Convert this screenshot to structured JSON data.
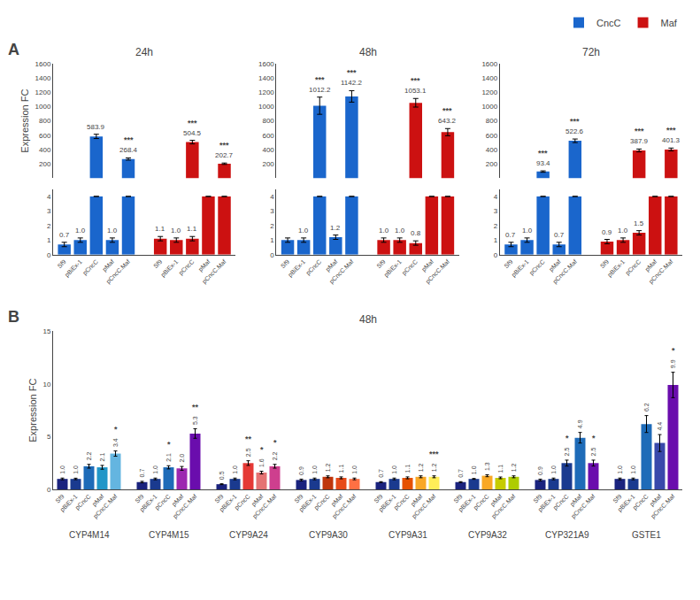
{
  "chart_data": [
    {
      "type": "bar",
      "title": "24h",
      "ylabel": "Expression FC",
      "annotations": [
        {
          "text": "A"
        }
      ],
      "legend": "upper right",
      "grid": false,
      "tick_labels": "y",
      "data_labels": true,
      "categories": [
        "Sf9",
        "pBiEx-1",
        "pCncC",
        "pMaf",
        "pCncC.Maf"
      ],
      "ylim": [
        0,
        1600
      ],
      "yticks": [
        200,
        400,
        600,
        800,
        1000,
        1200,
        1400,
        1600
      ],
      "series": [
        {
          "name": "CncC",
          "color": "#1a66cc",
          "values": [
            null,
            null,
            583.9,
            null,
            268.4
          ],
          "errors": [
            null,
            null,
            30.0,
            null,
            15.0
          ],
          "value_labels": [
            null,
            null,
            "583.9",
            null,
            "268.4"
          ],
          "significance": [
            null,
            null,
            null,
            null,
            "***"
          ]
        },
        {
          "name": "Maf",
          "color": "#cc1111",
          "values": [
            null,
            null,
            504.5,
            null,
            202.7
          ],
          "errors": [
            null,
            null,
            25.0,
            null,
            10.0
          ],
          "value_labels": [
            null,
            null,
            "504.5",
            null,
            "202.7"
          ],
          "significance": [
            null,
            null,
            "***",
            null,
            "***"
          ]
        }
      ]
    },
    {
      "type": "bar",
      "grid": false,
      "data_labels": true,
      "categories": [
        "Sf9",
        "pBiEx-1",
        "pCncC",
        "pMaf",
        "pCncC.Maf"
      ],
      "ylim": [
        0,
        4.5
      ],
      "yticks": [
        0,
        1,
        2,
        3,
        4
      ],
      "series": [
        {
          "name": "CncC",
          "color": "#1a66cc",
          "values": [
            0.7,
            1.0,
            4.0,
            1.0,
            4.0
          ],
          "errors": [
            0.15,
            0.15,
            0,
            0.15,
            0
          ],
          "value_labels": [
            "0.7",
            "1.0",
            null,
            "1.0",
            null
          ]
        },
        {
          "name": "Maf",
          "color": "#cc1111",
          "values": [
            1.1,
            1.0,
            1.1,
            4.0,
            4.0
          ],
          "errors": [
            0.15,
            0.15,
            0.15,
            0,
            0
          ],
          "value_labels": [
            "1.1",
            "1.0",
            "1.1",
            null,
            null
          ]
        }
      ]
    },
    {
      "type": "bar",
      "title": "48h",
      "grid": false,
      "tick_labels": "y",
      "data_labels": true,
      "categories": [
        "Sf9",
        "pBiEx-1",
        "pCncC",
        "pMaf",
        "pCncC.Maf"
      ],
      "ylim": [
        0,
        1600
      ],
      "yticks": [
        200,
        400,
        600,
        800,
        1000,
        1200,
        1400,
        1600
      ],
      "series": [
        {
          "name": "CncC",
          "color": "#1a66cc",
          "values": [
            null,
            null,
            1012.2,
            null,
            1142.2
          ],
          "errors": [
            null,
            null,
            120.0,
            null,
            80.0
          ],
          "value_labels": [
            null,
            null,
            "1012.2",
            null,
            "1142.2"
          ],
          "significance": [
            null,
            null,
            "***",
            null,
            "***"
          ]
        },
        {
          "name": "Maf",
          "color": "#cc1111",
          "values": [
            null,
            null,
            1053.1,
            null,
            643.2
          ],
          "errors": [
            null,
            null,
            60.0,
            null,
            50.0
          ],
          "value_labels": [
            null,
            null,
            "1053.1",
            null,
            "643.2"
          ],
          "significance": [
            null,
            null,
            "***",
            null,
            "***"
          ]
        }
      ]
    },
    {
      "type": "bar",
      "grid": false,
      "data_labels": true,
      "categories": [
        "Sf9",
        "pBiEx-1",
        "pCncC",
        "pMaf",
        "pCncC.Maf"
      ],
      "ylim": [
        0,
        4.5
      ],
      "yticks": [
        0,
        1,
        2,
        3,
        4
      ],
      "series": [
        {
          "name": "CncC",
          "color": "#1a66cc",
          "values": [
            1.0,
            1.0,
            4.0,
            1.2,
            4.0
          ],
          "errors": [
            0.15,
            0.15,
            0,
            0.15,
            0
          ],
          "value_labels": [
            null,
            "1.0",
            null,
            "1.2",
            null
          ]
        },
        {
          "name": "Maf",
          "color": "#cc1111",
          "values": [
            1.0,
            1.0,
            0.8,
            4.0,
            4.0
          ],
          "errors": [
            0.15,
            0.15,
            0.15,
            0,
            0
          ],
          "value_labels": [
            "1.0",
            "1.0",
            "0.8",
            null,
            null
          ]
        }
      ]
    },
    {
      "type": "bar",
      "title": "72h",
      "grid": false,
      "tick_labels": "y",
      "data_labels": true,
      "categories": [
        "Sf9",
        "pBiEx-1",
        "pCncC",
        "pMaf",
        "pCncC.Maf"
      ],
      "ylim": [
        0,
        1600
      ],
      "yticks": [
        200,
        400,
        600,
        800,
        1000,
        1200,
        1400,
        1600
      ],
      "series": [
        {
          "name": "CncC",
          "color": "#1a66cc",
          "values": [
            null,
            null,
            93.4,
            null,
            522.6
          ],
          "errors": [
            null,
            null,
            10.0,
            null,
            25.0
          ],
          "value_labels": [
            null,
            null,
            "93.4",
            null,
            "522.6"
          ],
          "significance": [
            null,
            null,
            "***",
            null,
            "***"
          ]
        },
        {
          "name": "Maf",
          "color": "#cc1111",
          "values": [
            null,
            null,
            387.9,
            null,
            401.3
          ],
          "errors": [
            null,
            null,
            20.0,
            null,
            20.0
          ],
          "value_labels": [
            null,
            null,
            "387.9",
            null,
            "401.3"
          ],
          "significance": [
            null,
            null,
            "***",
            null,
            "***"
          ]
        }
      ]
    },
    {
      "type": "bar",
      "grid": false,
      "data_labels": true,
      "categories": [
        "Sf9",
        "pBiEx-1",
        "pCncC",
        "pMaf",
        "pCncC.Maf"
      ],
      "ylim": [
        0,
        4.5
      ],
      "yticks": [
        0,
        1,
        2,
        3,
        4
      ],
      "series": [
        {
          "name": "CncC",
          "color": "#1a66cc",
          "values": [
            0.7,
            1.0,
            4.0,
            0.7,
            4.0
          ],
          "errors": [
            0.15,
            0.15,
            0,
            0.15,
            0
          ],
          "value_labels": [
            "0.7",
            "1.0",
            null,
            "0.7",
            null
          ]
        },
        {
          "name": "Maf",
          "color": "#cc1111",
          "values": [
            0.9,
            1.0,
            1.5,
            4.0,
            4.0
          ],
          "errors": [
            0.15,
            0.15,
            0.15,
            0,
            0
          ],
          "value_labels": [
            "0.9",
            "1.0",
            "1.5",
            null,
            null
          ]
        }
      ]
    },
    {
      "type": "bar",
      "title": "48h",
      "ylabel": "Expression FC",
      "annotations": [
        {
          "text": "B"
        }
      ],
      "grid": false,
      "data_labels": true,
      "categories": [
        "Sf9",
        "pBiEx-1",
        "pCncC",
        "pMaf",
        "pCncC.Maf"
      ],
      "ylim": [
        0,
        15
      ],
      "yticks": [
        0,
        5,
        10,
        15
      ],
      "groups": [
        {
          "name": "CYP4M14",
          "values": [
            1.0,
            1.0,
            2.2,
            2.1,
            3.4
          ],
          "errors": [
            0.08,
            0.07,
            0.18,
            0.18,
            0.25
          ],
          "colors": [
            "#1a237e",
            "#1a3a8f",
            "#1e6bb8",
            "#2196c8",
            "#64b5e0"
          ],
          "value_labels": [
            "1.0",
            "1.0",
            "2.2",
            "2.1",
            "3.4"
          ],
          "significance": [
            null,
            null,
            null,
            null,
            "*"
          ]
        },
        {
          "name": "CYP4M15",
          "values": [
            0.7,
            1.0,
            2.1,
            2.0,
            5.3
          ],
          "errors": [
            0.07,
            0.08,
            0.15,
            0.18,
            0.45
          ],
          "colors": [
            "#1a237e",
            "#1a3a8f",
            "#1e6bb8",
            "#9c27b0",
            "#6a0dad"
          ],
          "value_labels": [
            "0.7",
            "1.0",
            "2.1",
            "2.0",
            "5.3"
          ],
          "significance": [
            null,
            null,
            "*",
            null,
            "**"
          ]
        },
        {
          "name": "CYP9A24",
          "values": [
            0.5,
            1.0,
            2.5,
            1.6,
            2.2
          ],
          "errors": [
            0.04,
            0.08,
            0.22,
            0.13,
            0.18
          ],
          "colors": [
            "#1a237e",
            "#1a3a8f",
            "#e53935",
            "#e57373",
            "#ce3f8e"
          ],
          "value_labels": [
            "0.5",
            "1.0",
            "2.5",
            "1.6",
            "2.2"
          ],
          "significance": [
            null,
            null,
            "**",
            "*",
            "*"
          ]
        },
        {
          "name": "CYP9A30",
          "values": [
            0.9,
            1.0,
            1.2,
            1.1,
            1.0
          ],
          "errors": [
            0.08,
            0.08,
            0.09,
            0.09,
            0.08
          ],
          "colors": [
            "#1a237e",
            "#1a3a8f",
            "#bf360c",
            "#e64a19",
            "#ff7043"
          ],
          "value_labels": [
            "0.9",
            "1.0",
            "1.2",
            "1.1",
            "1.0"
          ],
          "significance": [
            null,
            null,
            null,
            null,
            null
          ]
        },
        {
          "name": "CYP9A31",
          "values": [
            0.7,
            1.0,
            1.1,
            1.2,
            1.2
          ],
          "errors": [
            0.04,
            0.08,
            0.09,
            0.09,
            0.09
          ],
          "colors": [
            "#1a237e",
            "#1a3a8f",
            "#e65100",
            "#f9a825",
            "#ffee58"
          ],
          "value_labels": [
            "0.7",
            "1.0",
            "1.1",
            "1.2",
            "1.2"
          ],
          "significance": [
            null,
            null,
            null,
            null,
            "***"
          ]
        },
        {
          "name": "CYP9A32",
          "values": [
            0.7,
            1.0,
            1.3,
            1.1,
            1.2
          ],
          "errors": [
            0.04,
            0.04,
            0.09,
            0.08,
            0.09
          ],
          "colors": [
            "#1a237e",
            "#1a3a8f",
            "#f9a825",
            "#c6cc00",
            "#aecc00"
          ],
          "value_labels": [
            "0.7",
            "1.0",
            "1.3",
            "1.1",
            "1.2"
          ],
          "significance": [
            null,
            null,
            null,
            null,
            null
          ]
        },
        {
          "name": "CYP321A9",
          "values": [
            0.9,
            1.0,
            2.5,
            4.9,
            2.5
          ],
          "errors": [
            0.08,
            0.08,
            0.28,
            0.5,
            0.28
          ],
          "colors": [
            "#1a237e",
            "#1a3a8f",
            "#1a3a8f",
            "#1e6bb8",
            "#6a0dad"
          ],
          "value_labels": [
            "0.9",
            "1.0",
            "2.5",
            "4.9",
            "2.5"
          ],
          "significance": [
            null,
            null,
            "*",
            null,
            "*"
          ]
        },
        {
          "name": "GSTE1",
          "values": [
            1.0,
            1.0,
            6.2,
            4.4,
            9.9
          ],
          "errors": [
            0.08,
            0.08,
            0.8,
            0.8,
            1.2
          ],
          "colors": [
            "#1a237e",
            "#1a3a8f",
            "#1e6bb8",
            "#3949ab",
            "#6a0dad"
          ],
          "value_labels": [
            "1.0",
            "1.0",
            "6.2",
            "4.4",
            "9.9"
          ],
          "significance": [
            null,
            null,
            null,
            null,
            "*"
          ]
        }
      ]
    }
  ]
}
